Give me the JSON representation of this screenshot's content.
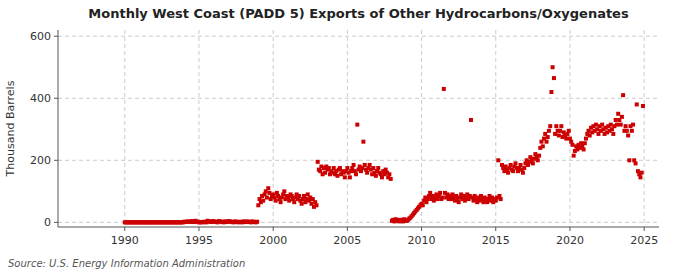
{
  "chart_data": {
    "type": "scatter",
    "title": "Monthly West Coast (PADD 5) Exports of Other Hydrocarbons/Oxygenates",
    "ylabel": "Thousand Barrels",
    "source": "Source: U.S. Energy Information Administration",
    "color": "#cc0000",
    "marker": "square",
    "grid": true,
    "xlim": [
      1985.5,
      2026
    ],
    "ylim": [
      -15,
      620
    ],
    "xticks": [
      1990,
      1995,
      2000,
      2005,
      2010,
      2015,
      2020,
      2025
    ],
    "yticks": [
      0,
      200,
      400,
      600
    ],
    "x": [
      1990.0,
      1990.08,
      1990.17,
      1990.25,
      1990.33,
      1990.42,
      1990.5,
      1990.58,
      1990.67,
      1990.75,
      1990.83,
      1990.92,
      1991.0,
      1991.08,
      1991.17,
      1991.25,
      1991.33,
      1991.42,
      1991.5,
      1991.58,
      1991.67,
      1991.75,
      1991.83,
      1991.92,
      1992.0,
      1992.08,
      1992.17,
      1992.25,
      1992.33,
      1992.42,
      1992.5,
      1992.58,
      1992.67,
      1992.75,
      1992.83,
      1992.92,
      1993.0,
      1993.08,
      1993.17,
      1993.25,
      1993.33,
      1993.42,
      1993.5,
      1993.58,
      1993.67,
      1993.75,
      1993.83,
      1993.92,
      1994.0,
      1994.08,
      1994.17,
      1994.25,
      1994.33,
      1994.42,
      1994.5,
      1994.58,
      1994.67,
      1994.75,
      1994.83,
      1994.92,
      1995.0,
      1995.08,
      1995.17,
      1995.25,
      1995.33,
      1995.42,
      1995.5,
      1995.58,
      1995.67,
      1995.75,
      1995.83,
      1995.92,
      1996.0,
      1996.08,
      1996.17,
      1996.25,
      1996.33,
      1996.42,
      1996.5,
      1996.58,
      1996.67,
      1996.75,
      1996.83,
      1996.92,
      1997.0,
      1997.08,
      1997.17,
      1997.25,
      1997.33,
      1997.42,
      1997.5,
      1997.58,
      1997.67,
      1997.75,
      1997.83,
      1997.92,
      1998.0,
      1998.08,
      1998.17,
      1998.25,
      1998.33,
      1998.42,
      1998.5,
      1998.58,
      1998.67,
      1998.75,
      1998.83,
      1998.92,
      1999.0,
      1999.08,
      1999.17,
      1999.25,
      1999.33,
      1999.42,
      1999.5,
      1999.58,
      1999.67,
      1999.75,
      1999.83,
      1999.92,
      2000.0,
      2000.08,
      2000.17,
      2000.25,
      2000.33,
      2000.42,
      2000.5,
      2000.58,
      2000.67,
      2000.75,
      2000.83,
      2000.92,
      2001.0,
      2001.08,
      2001.17,
      2001.25,
      2001.33,
      2001.42,
      2001.5,
      2001.58,
      2001.67,
      2001.75,
      2001.83,
      2001.92,
      2002.0,
      2002.08,
      2002.17,
      2002.25,
      2002.33,
      2002.42,
      2002.5,
      2002.58,
      2002.67,
      2002.75,
      2002.83,
      2002.92,
      2003.0,
      2003.08,
      2003.17,
      2003.25,
      2003.33,
      2003.42,
      2003.5,
      2003.58,
      2003.67,
      2003.75,
      2003.83,
      2003.92,
      2004.0,
      2004.08,
      2004.17,
      2004.25,
      2004.33,
      2004.42,
      2004.5,
      2004.58,
      2004.67,
      2004.75,
      2004.83,
      2004.92,
      2005.0,
      2005.08,
      2005.17,
      2005.25,
      2005.33,
      2005.42,
      2005.5,
      2005.58,
      2005.67,
      2005.75,
      2005.83,
      2005.92,
      2006.0,
      2006.08,
      2006.17,
      2006.25,
      2006.33,
      2006.42,
      2006.5,
      2006.58,
      2006.67,
      2006.75,
      2006.83,
      2006.92,
      2007.0,
      2007.08,
      2007.17,
      2007.25,
      2007.33,
      2007.42,
      2007.5,
      2007.58,
      2007.67,
      2007.75,
      2007.83,
      2007.92,
      2008.0,
      2008.08,
      2008.17,
      2008.25,
      2008.33,
      2008.42,
      2008.5,
      2008.58,
      2008.67,
      2008.75,
      2008.83,
      2008.92,
      2009.0,
      2009.08,
      2009.17,
      2009.25,
      2009.33,
      2009.42,
      2009.5,
      2009.58,
      2009.67,
      2009.75,
      2009.83,
      2009.92,
      2010.0,
      2010.08,
      2010.17,
      2010.25,
      2010.33,
      2010.42,
      2010.5,
      2010.58,
      2010.67,
      2010.75,
      2010.83,
      2010.92,
      2011.0,
      2011.08,
      2011.17,
      2011.25,
      2011.33,
      2011.42,
      2011.5,
      2011.58,
      2011.67,
      2011.75,
      2011.83,
      2011.92,
      2012.0,
      2012.08,
      2012.17,
      2012.25,
      2012.33,
      2012.42,
      2012.5,
      2012.58,
      2012.67,
      2012.75,
      2012.83,
      2012.92,
      2013.0,
      2013.08,
      2013.17,
      2013.25,
      2013.33,
      2013.42,
      2013.5,
      2013.58,
      2013.67,
      2013.75,
      2013.83,
      2013.92,
      2014.0,
      2014.08,
      2014.17,
      2014.25,
      2014.33,
      2014.42,
      2014.5,
      2014.58,
      2014.67,
      2014.75,
      2014.83,
      2014.92,
      2015.0,
      2015.08,
      2015.17,
      2015.25,
      2015.33,
      2015.42,
      2015.5,
      2015.58,
      2015.67,
      2015.75,
      2015.83,
      2015.92,
      2016.0,
      2016.08,
      2016.17,
      2016.25,
      2016.33,
      2016.42,
      2016.5,
      2016.58,
      2016.67,
      2016.75,
      2016.83,
      2016.92,
      2017.0,
      2017.08,
      2017.17,
      2017.25,
      2017.33,
      2017.42,
      2017.5,
      2017.58,
      2017.67,
      2017.75,
      2017.83,
      2017.92,
      2018.0,
      2018.08,
      2018.17,
      2018.25,
      2018.33,
      2018.42,
      2018.5,
      2018.58,
      2018.67,
      2018.75,
      2018.83,
      2018.92,
      2019.0,
      2019.08,
      2019.17,
      2019.25,
      2019.33,
      2019.42,
      2019.5,
      2019.58,
      2019.67,
      2019.75,
      2019.83,
      2019.92,
      2020.0,
      2020.08,
      2020.17,
      2020.25,
      2020.33,
      2020.42,
      2020.5,
      2020.58,
      2020.67,
      2020.75,
      2020.83,
      2020.92,
      2021.0,
      2021.08,
      2021.17,
      2021.25,
      2021.33,
      2021.42,
      2021.5,
      2021.58,
      2021.67,
      2021.75,
      2021.83,
      2021.92,
      2022.0,
      2022.08,
      2022.17,
      2022.25,
      2022.33,
      2022.42,
      2022.5,
      2022.58,
      2022.67,
      2022.75,
      2022.83,
      2022.92,
      2023.0,
      2023.08,
      2023.17,
      2023.25,
      2023.33,
      2023.42,
      2023.5,
      2023.58,
      2023.67,
      2023.75,
      2023.83,
      2023.92,
      2024.0,
      2024.08,
      2024.17,
      2024.25,
      2024.33,
      2024.42,
      2024.5,
      2024.58,
      2024.67,
      2024.75,
      2024.83,
      2024.92
    ],
    "values": [
      0,
      0,
      0,
      0,
      0,
      0,
      0,
      0,
      0,
      0,
      0,
      0,
      0,
      0,
      0,
      0,
      0,
      0,
      0,
      0,
      0,
      0,
      0,
      0,
      0,
      0,
      0,
      0,
      0,
      0,
      0,
      0,
      0,
      0,
      0,
      0,
      0,
      0,
      0,
      0,
      0,
      0,
      0,
      0,
      0,
      0,
      0,
      0,
      2,
      1,
      2,
      3,
      2,
      1,
      4,
      2,
      1,
      5,
      3,
      2,
      0,
      0,
      1,
      0,
      2,
      1,
      0,
      5,
      3,
      2,
      1,
      4,
      3,
      2,
      1,
      0,
      4,
      3,
      2,
      1,
      0,
      3,
      2,
      1,
      4,
      3,
      2,
      1,
      0,
      3,
      2,
      1,
      0,
      2,
      1,
      0,
      3,
      2,
      1,
      3,
      2,
      1,
      0,
      3,
      2,
      1,
      0,
      2,
      55,
      75,
      65,
      85,
      70,
      90,
      100,
      80,
      110,
      95,
      75,
      85,
      90,
      80,
      70,
      95,
      85,
      75,
      65,
      80,
      90,
      100,
      75,
      85,
      80,
      70,
      90,
      85,
      75,
      65,
      80,
      90,
      75,
      85,
      70,
      60,
      75,
      85,
      65,
      75,
      90,
      70,
      80,
      60,
      75,
      50,
      65,
      55,
      195,
      170,
      165,
      180,
      155,
      175,
      160,
      180,
      170,
      175,
      155,
      165,
      160,
      175,
      155,
      165,
      150,
      170,
      175,
      155,
      165,
      160,
      145,
      165,
      175,
      160,
      145,
      165,
      175,
      185,
      165,
      155,
      315,
      170,
      180,
      165,
      175,
      260,
      185,
      170,
      160,
      175,
      185,
      170,
      155,
      175,
      160,
      150,
      165,
      175,
      160,
      155,
      145,
      165,
      155,
      170,
      160,
      145,
      155,
      140,
      5,
      8,
      3,
      10,
      5,
      8,
      3,
      5,
      8,
      3,
      10,
      5,
      5,
      8,
      12,
      15,
      20,
      25,
      30,
      35,
      40,
      45,
      50,
      55,
      60,
      55,
      70,
      80,
      65,
      75,
      85,
      95,
      75,
      85,
      70,
      80,
      90,
      75,
      85,
      95,
      75,
      80,
      430,
      95,
      80,
      90,
      75,
      85,
      75,
      90,
      80,
      70,
      85,
      75,
      65,
      80,
      90,
      75,
      85,
      70,
      80,
      90,
      75,
      85,
      330,
      80,
      70,
      85,
      75,
      65,
      80,
      70,
      85,
      75,
      65,
      80,
      75,
      65,
      75,
      85,
      70,
      80,
      65,
      75,
      70,
      80,
      200,
      85,
      75,
      185,
      175,
      165,
      180,
      170,
      160,
      175,
      185,
      170,
      165,
      180,
      190,
      175,
      165,
      175,
      185,
      170,
      160,
      175,
      190,
      200,
      185,
      195,
      210,
      200,
      190,
      205,
      220,
      210,
      200,
      215,
      240,
      260,
      245,
      270,
      285,
      260,
      275,
      295,
      310,
      420,
      500,
      465,
      285,
      310,
      295,
      280,
      295,
      310,
      275,
      290,
      280,
      270,
      285,
      295,
      270,
      260,
      250,
      215,
      230,
      245,
      235,
      250,
      240,
      255,
      245,
      235,
      255,
      270,
      285,
      295,
      280,
      305,
      290,
      310,
      295,
      315,
      300,
      285,
      310,
      295,
      315,
      300,
      285,
      305,
      290,
      310,
      295,
      315,
      300,
      285,
      310,
      330,
      315,
      350,
      330,
      315,
      340,
      410,
      295,
      310,
      295,
      280,
      200,
      310,
      295,
      315,
      200,
      190,
      380,
      165,
      155,
      145,
      160,
      375
    ]
  }
}
